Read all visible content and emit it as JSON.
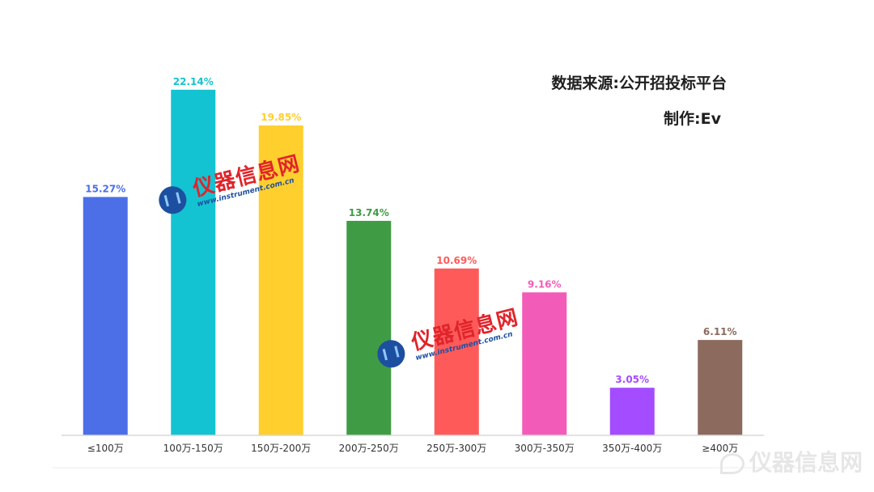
{
  "notes": {
    "source": "数据来源:公开招投标平台",
    "author": "制作:Ev"
  },
  "watermark": {
    "title": "仪器信息网",
    "url": "www.instrument.com.cn",
    "logo_color": "#1d4fa0",
    "title_color": "#e0242b"
  },
  "chart_data": {
    "type": "bar",
    "title": "",
    "xlabel": "",
    "ylabel": "",
    "ylim": [
      0,
      24
    ],
    "grid": false,
    "categories": [
      "≤100万",
      "100万-150万",
      "150万-200万",
      "200万-250万",
      "250万-300万",
      "300万-350万",
      "350万-400万",
      "≥400万"
    ],
    "values": [
      15.27,
      22.14,
      19.85,
      13.74,
      10.69,
      9.16,
      3.05,
      6.11
    ],
    "value_labels": [
      "15.27%",
      "22.14%",
      "19.85%",
      "13.74%",
      "10.69%",
      "9.16%",
      "3.05%",
      "6.11%"
    ],
    "colors": [
      "#4c6fe8",
      "#14c3d1",
      "#ffcf2e",
      "#3f9c45",
      "#ff5a5a",
      "#f25cb8",
      "#a44cff",
      "#8c6a5d"
    ]
  }
}
